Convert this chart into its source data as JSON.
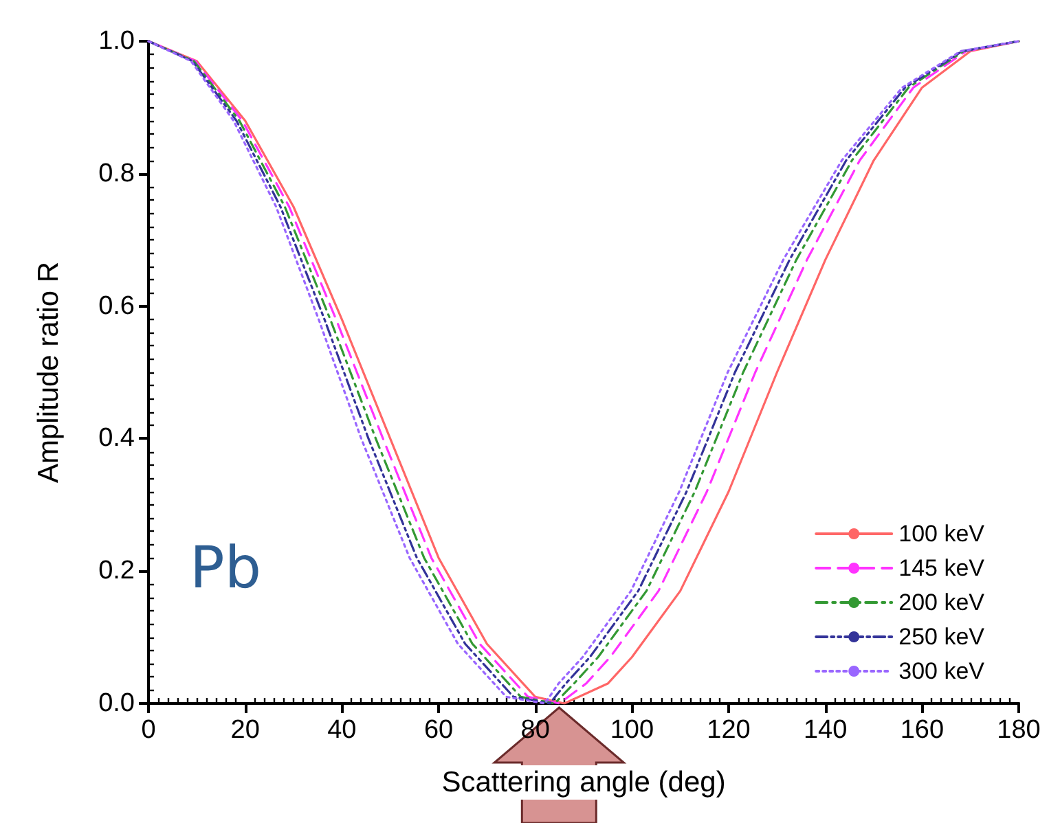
{
  "chart_data": {
    "type": "line",
    "xlabel": "Scattering angle (deg)",
    "ylabel": "Amplitude ratio R",
    "xlim": [
      0,
      180
    ],
    "xticks": [
      0,
      20,
      40,
      60,
      80,
      100,
      120,
      140,
      160,
      180
    ],
    "ylim": [
      0,
      1
    ],
    "yticks": [
      {
        "value": 0,
        "label": "0.0"
      },
      {
        "value": 0.2,
        "label": "0.2"
      },
      {
        "value": 0.4,
        "label": "0.4"
      },
      {
        "value": 0.6,
        "label": "0.6"
      },
      {
        "value": 0.8,
        "label": "0.8"
      },
      {
        "value": 1,
        "label": "1.0"
      }
    ],
    "grid": false,
    "legend": "bottom right",
    "marker": "none",
    "annotations": [
      "Pb"
    ],
    "series": [
      {
        "name": "100 keV",
        "color": "#ff6666",
        "line_style": "solid",
        "x": [
          0,
          10,
          20,
          30,
          40,
          50,
          60,
          70,
          80,
          86,
          95,
          100,
          110,
          120,
          130,
          140,
          150,
          160,
          170,
          180
        ],
        "values": [
          1,
          0.97,
          0.88,
          0.75,
          0.58,
          0.4,
          0.22,
          0.09,
          0.01,
          0,
          0.03,
          0.07,
          0.17,
          0.32,
          0.5,
          0.67,
          0.82,
          0.93,
          0.985,
          1
        ]
      },
      {
        "name": "145 keV",
        "color": "#ff33ff",
        "line_style": "dashed",
        "x": [
          0,
          9.7,
          19.4,
          29.1,
          38.8,
          48.5,
          58.5,
          68.5,
          78.5,
          85,
          90.5,
          95.5,
          105.5,
          115.5,
          125.5,
          136.2,
          147.1,
          158.2,
          169.1,
          180
        ],
        "values": [
          1,
          0.97,
          0.88,
          0.75,
          0.58,
          0.4,
          0.22,
          0.09,
          0.01,
          0,
          0.03,
          0.07,
          0.17,
          0.32,
          0.5,
          0.67,
          0.82,
          0.93,
          0.985,
          1
        ]
      },
      {
        "name": "200 keV",
        "color": "#339933",
        "line_style": "dashdot",
        "x": [
          0,
          9.4,
          18.8,
          28.2,
          37.6,
          47,
          57,
          67,
          77,
          84,
          88,
          93,
          103,
          113,
          123,
          134,
          145.5,
          157.2,
          168.6,
          180
        ],
        "values": [
          1,
          0.97,
          0.88,
          0.75,
          0.58,
          0.4,
          0.22,
          0.09,
          0.01,
          0,
          0.03,
          0.07,
          0.17,
          0.32,
          0.5,
          0.67,
          0.82,
          0.93,
          0.985,
          1
        ]
      },
      {
        "name": "250 keV",
        "color": "#333399",
        "line_style": "dashdotdot",
        "x": [
          0,
          9.1,
          18.2,
          27.3,
          36.4,
          45.5,
          55.5,
          65.5,
          75.5,
          83,
          86.3,
          91.3,
          101.3,
          111.3,
          121.3,
          132.6,
          144.3,
          156.5,
          168.3,
          180
        ],
        "values": [
          1,
          0.97,
          0.88,
          0.75,
          0.58,
          0.4,
          0.22,
          0.09,
          0.01,
          0,
          0.03,
          0.07,
          0.17,
          0.32,
          0.5,
          0.67,
          0.82,
          0.93,
          0.985,
          1
        ]
      },
      {
        "name": "300 keV",
        "color": "#9966ff",
        "line_style": "dotted",
        "x": [
          0,
          8.8,
          17.6,
          26.4,
          35.2,
          44,
          54,
          64,
          74,
          82,
          84.8,
          89.8,
          99.8,
          109.8,
          119.8,
          131.3,
          143.4,
          155.9,
          168,
          180
        ],
        "values": [
          1,
          0.97,
          0.88,
          0.75,
          0.58,
          0.4,
          0.22,
          0.09,
          0.01,
          0,
          0.03,
          0.07,
          0.17,
          0.32,
          0.5,
          0.67,
          0.82,
          0.93,
          0.985,
          1
        ]
      }
    ]
  }
}
